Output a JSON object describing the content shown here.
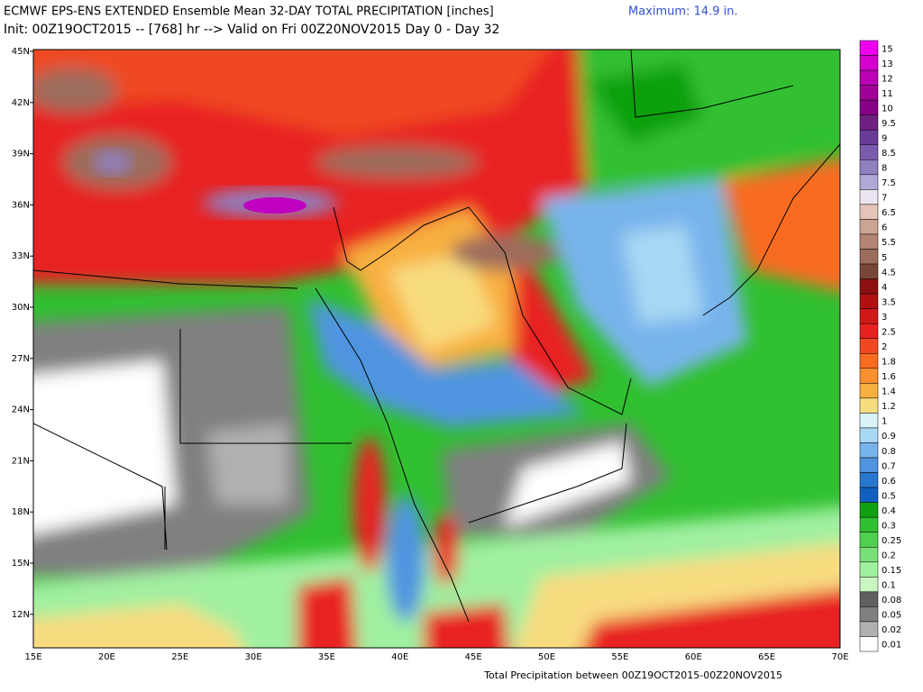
{
  "header": {
    "title": "ECMWF EPS-ENS EXTENDED Ensemble Mean 32-DAY TOTAL PRECIPITATION [inches]",
    "maximum": "Maximum:  14.9 in.",
    "init": "Init: 00Z19OCT2015 -- [768] hr --> Valid on Fri 00Z20NOV2015  Day 0 - Day 32"
  },
  "map": {
    "lat_labels": [
      "45N",
      "42N",
      "39N",
      "36N",
      "33N",
      "30N",
      "27N",
      "24N",
      "21N",
      "18N",
      "15N",
      "12N"
    ],
    "lon_labels": [
      "15E",
      "20E",
      "25E",
      "30E",
      "35E",
      "40E",
      "45E",
      "50E",
      "55E",
      "60E",
      "65E",
      "70E"
    ]
  },
  "legend": {
    "levels": [
      {
        "label": "15",
        "color": "#ee00ee"
      },
      {
        "label": "13",
        "color": "#d400cc"
      },
      {
        "label": "12",
        "color": "#ba00b2"
      },
      {
        "label": "11",
        "color": "#a00098"
      },
      {
        "label": "10",
        "color": "#880088"
      },
      {
        "label": "9.5",
        "color": "#702080"
      },
      {
        "label": "9",
        "color": "#6a3c9a"
      },
      {
        "label": "8.5",
        "color": "#7a5aaa"
      },
      {
        "label": "8",
        "color": "#9080c0"
      },
      {
        "label": "7.5",
        "color": "#b0a8d8"
      },
      {
        "label": "7",
        "color": "#ece4f0"
      },
      {
        "label": "6.5",
        "color": "#e4c4b8"
      },
      {
        "label": "6",
        "color": "#cca494"
      },
      {
        "label": "5.5",
        "color": "#b48474"
      },
      {
        "label": "5",
        "color": "#9c6c5c"
      },
      {
        "label": "4.5",
        "color": "#784636"
      },
      {
        "label": "4",
        "color": "#8c1010"
      },
      {
        "label": "3.5",
        "color": "#b01010"
      },
      {
        "label": "3",
        "color": "#d01818"
      },
      {
        "label": "2.5",
        "color": "#e82020"
      },
      {
        "label": "2",
        "color": "#f04820"
      },
      {
        "label": "1.8",
        "color": "#f86c20"
      },
      {
        "label": "1.6",
        "color": "#f89030"
      },
      {
        "label": "1.4",
        "color": "#f8b040"
      },
      {
        "label": "1.2",
        "color": "#f8dc80"
      },
      {
        "label": "1",
        "color": "#d8f4f8"
      },
      {
        "label": "0.9",
        "color": "#a8d8f4"
      },
      {
        "label": "0.8",
        "color": "#78b4ec"
      },
      {
        "label": "0.7",
        "color": "#5094e0"
      },
      {
        "label": "0.6",
        "color": "#2878d0"
      },
      {
        "label": "0.5",
        "color": "#1060c0"
      },
      {
        "label": "0.4",
        "color": "#10a010"
      },
      {
        "label": "0.3",
        "color": "#30c030"
      },
      {
        "label": "0.25",
        "color": "#50d050"
      },
      {
        "label": "0.2",
        "color": "#78e078"
      },
      {
        "label": "0.15",
        "color": "#a0f0a0"
      },
      {
        "label": "0.1",
        "color": "#c8f8c0"
      },
      {
        "label": "0.08",
        "color": "#606060"
      },
      {
        "label": "0.05",
        "color": "#808080"
      },
      {
        "label": "0.02",
        "color": "#b0b0b0"
      },
      {
        "label": "0.01",
        "color": "#ffffff"
      }
    ]
  },
  "footer": "Total Precipitation between 00Z19OCT2015-00Z20NOV2015"
}
